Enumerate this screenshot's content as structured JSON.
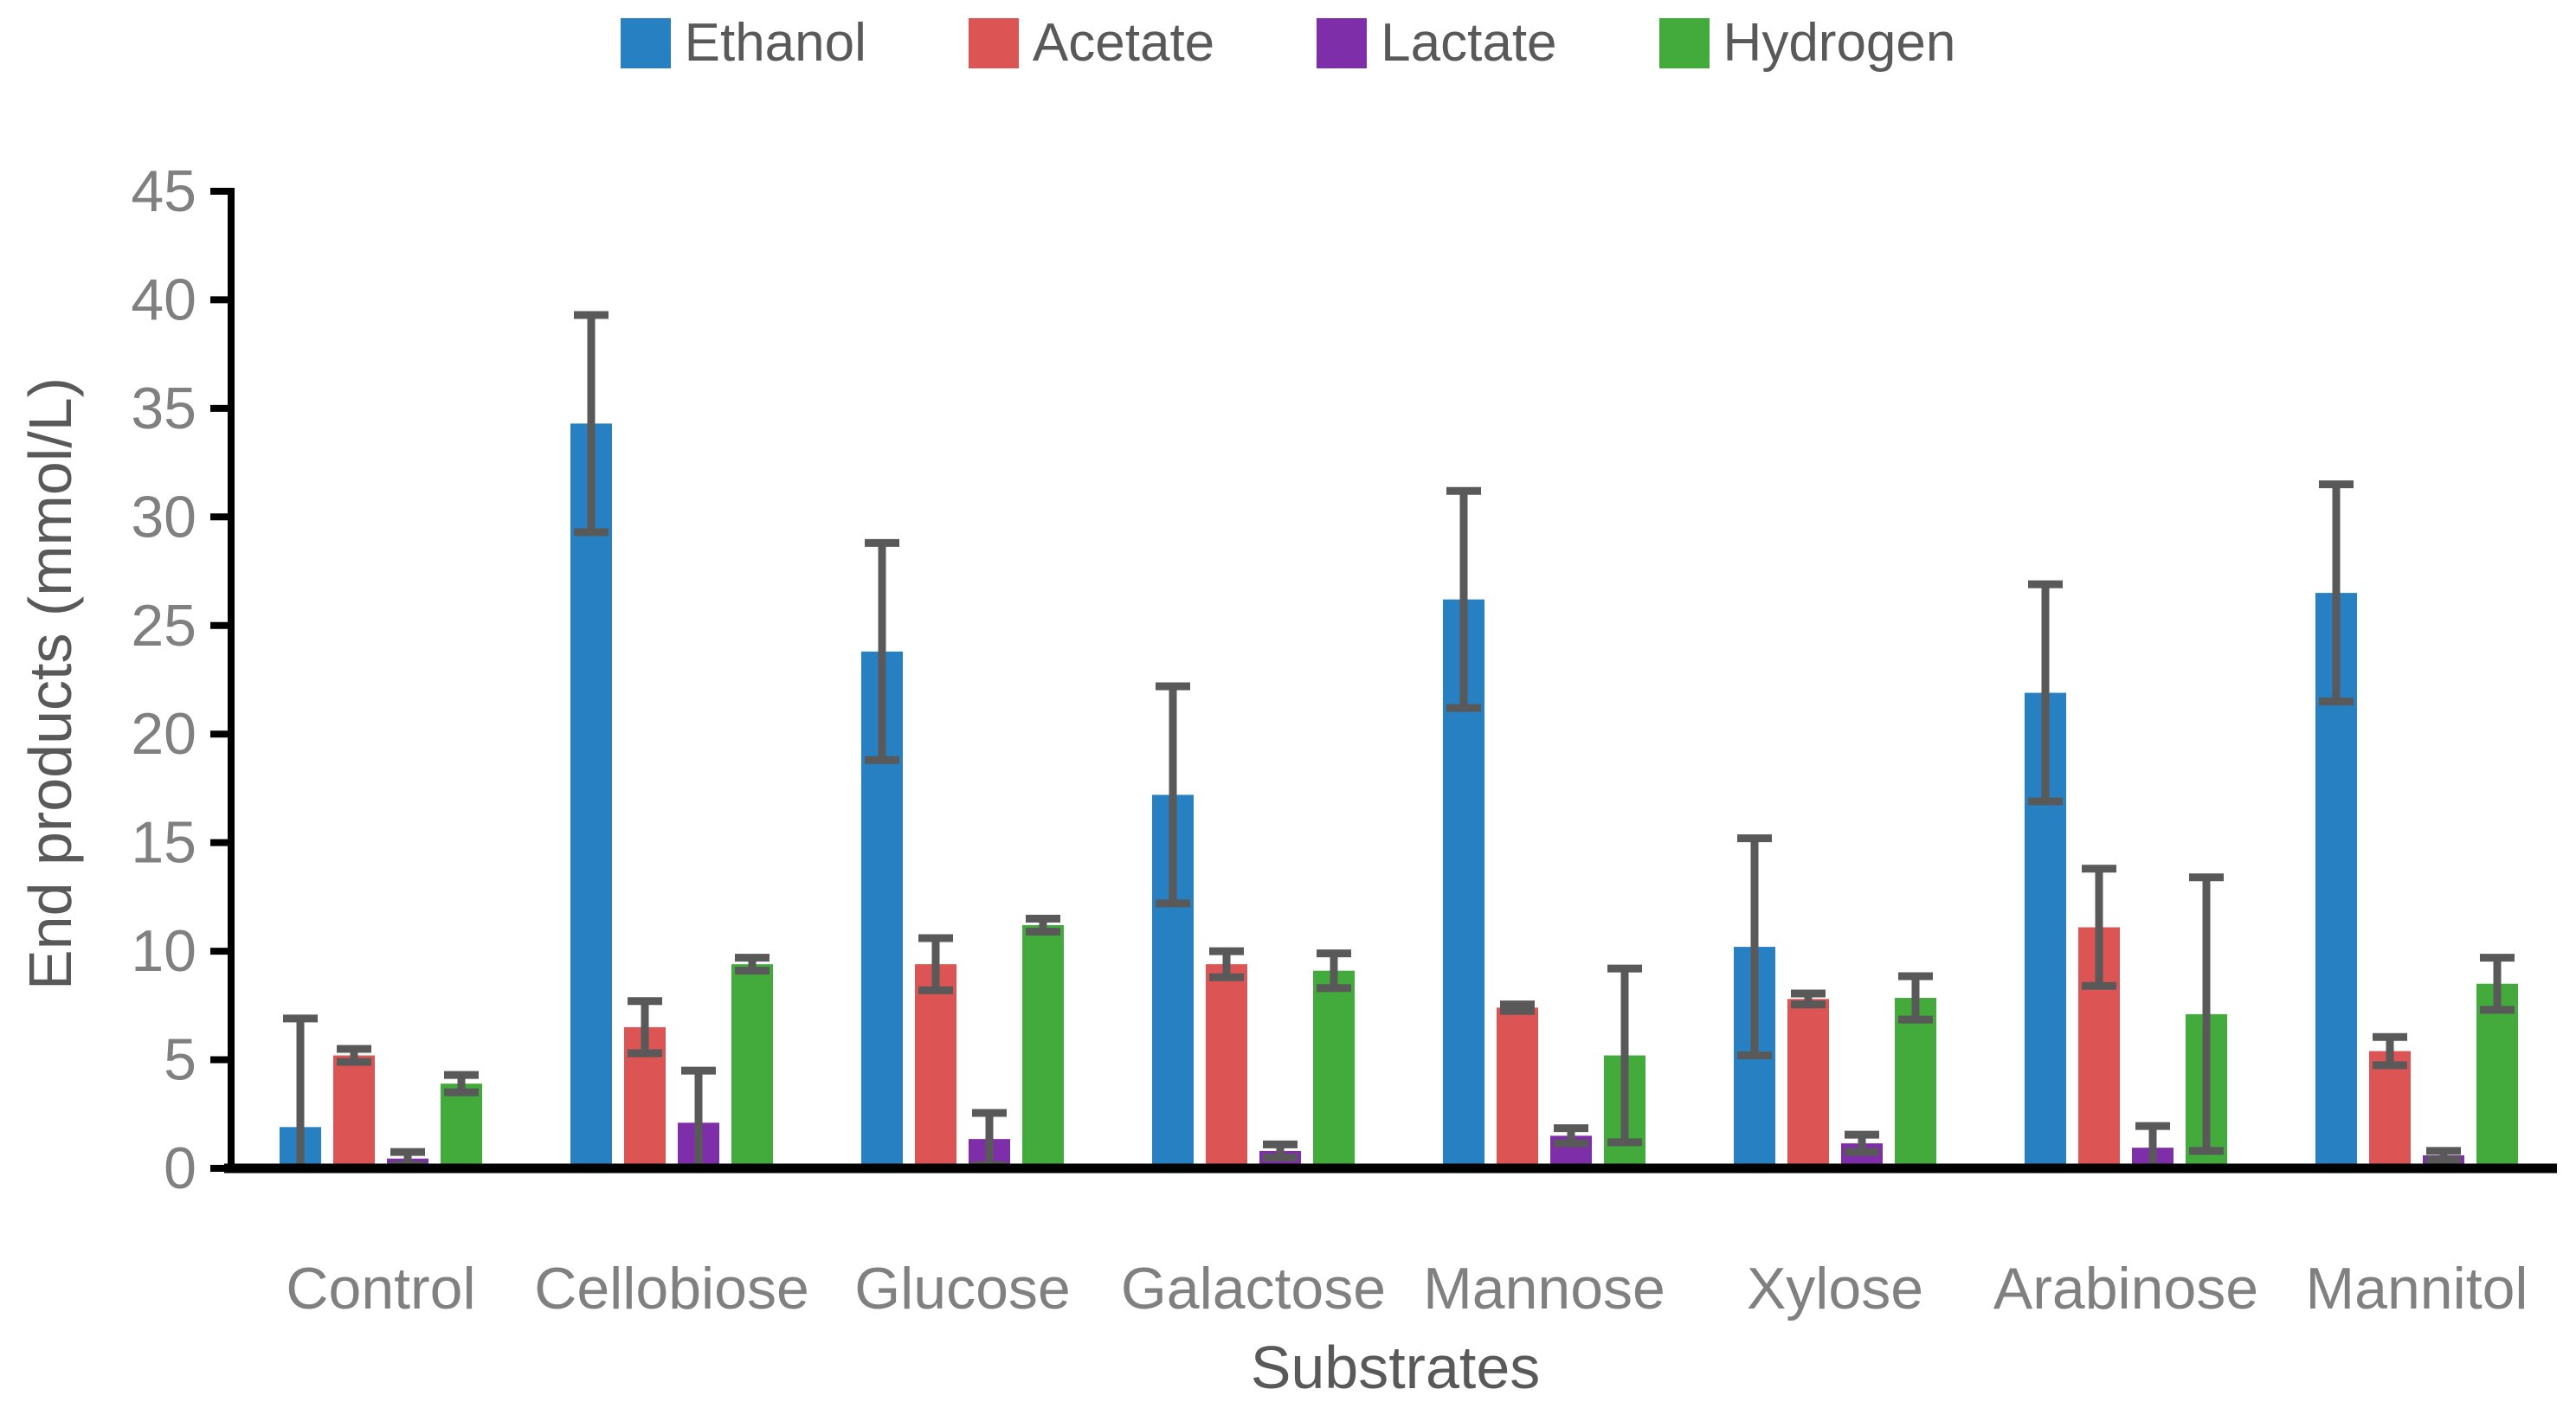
{
  "chart_data": {
    "type": "bar",
    "title": "",
    "xlabel": "Substrates",
    "ylabel": "End products (mmol/L)",
    "ylim": [
      0,
      45
    ],
    "ytick_step": 5,
    "ytick_labels": [
      "0",
      "5",
      "10",
      "15",
      "20",
      "25",
      "30",
      "35",
      "40",
      "45"
    ],
    "grid": false,
    "legend_position": "top",
    "categories": [
      "Control",
      "Cellobiose",
      "Glucose",
      "Galactose",
      "Mannose",
      "Xylose",
      "Arabinose",
      "Mannitol"
    ],
    "series": [
      {
        "name": "Ethanol",
        "color": "#2680C2",
        "values": [
          1.9,
          34.3,
          23.8,
          17.2,
          26.2,
          10.2,
          21.9,
          26.5
        ],
        "errors": [
          5.0,
          5.0,
          5.0,
          5.0,
          5.0,
          5.0,
          5.0,
          5.0
        ]
      },
      {
        "name": "Acetate",
        "color": "#DC5454",
        "values": [
          5.2,
          6.5,
          9.4,
          9.4,
          7.4,
          7.8,
          11.1,
          5.4
        ],
        "errors": [
          0.3,
          1.2,
          1.2,
          0.6,
          0.15,
          0.25,
          2.7,
          0.65
        ]
      },
      {
        "name": "Lactate",
        "color": "#7D2EA8",
        "values": [
          0.45,
          2.1,
          1.35,
          0.8,
          1.5,
          1.15,
          0.95,
          0.6
        ],
        "errors": [
          0.3,
          2.4,
          1.2,
          0.3,
          0.35,
          0.4,
          1.0,
          0.2
        ]
      },
      {
        "name": "Hydrogen",
        "color": "#42AB3C",
        "values": [
          3.9,
          9.4,
          11.2,
          9.1,
          5.2,
          7.85,
          7.1,
          8.5
        ],
        "errors": [
          0.4,
          0.3,
          0.3,
          0.8,
          4.0,
          1.0,
          6.3,
          1.2
        ]
      }
    ],
    "error_bar_color": "#595959",
    "axis_color": "#000000",
    "tick_label_color": "#808080",
    "category_label_color": "#808080",
    "axis_title_color": "#595959"
  }
}
